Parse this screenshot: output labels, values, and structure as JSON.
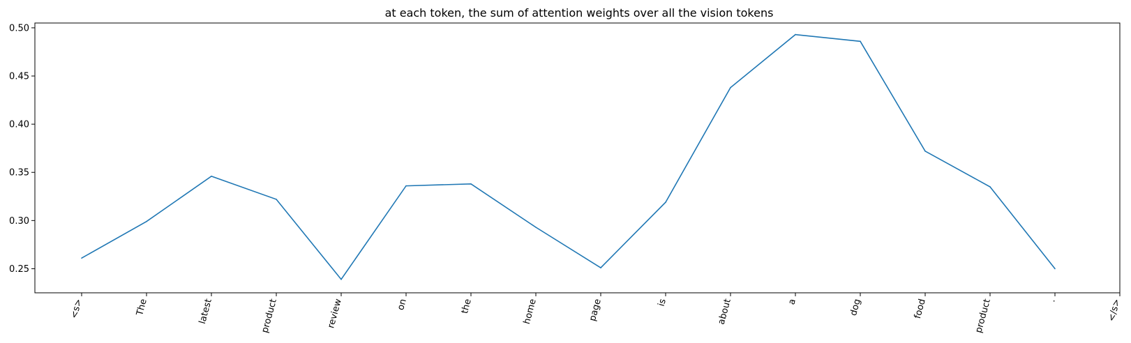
{
  "chart_data": {
    "type": "line",
    "title": "at each token, the sum of attention weights over all the vision tokens",
    "xlabel": "",
    "ylabel": "",
    "categories": [
      "<s>",
      "The",
      "latest",
      "product",
      "review",
      "on",
      "the",
      "home",
      "page",
      "is",
      "about",
      "a",
      "dog",
      "food",
      "product",
      ".",
      "</s>"
    ],
    "series": [
      {
        "name": "",
        "values": [
          0.261,
          0.299,
          0.346,
          0.322,
          0.239,
          0.336,
          0.338,
          0.293,
          0.251,
          0.319,
          0.438,
          0.493,
          0.486,
          0.372,
          0.335,
          0.25,
          null
        ]
      }
    ],
    "yticks": [
      0.25,
      0.3,
      0.35,
      0.4,
      0.45,
      0.5
    ],
    "ytick_labels": [
      "0.25",
      "0.30",
      "0.35",
      "0.40",
      "0.45",
      "0.50"
    ],
    "ylim": [
      0.225,
      0.505
    ],
    "grid": false,
    "line_color": "#1f77b4"
  }
}
